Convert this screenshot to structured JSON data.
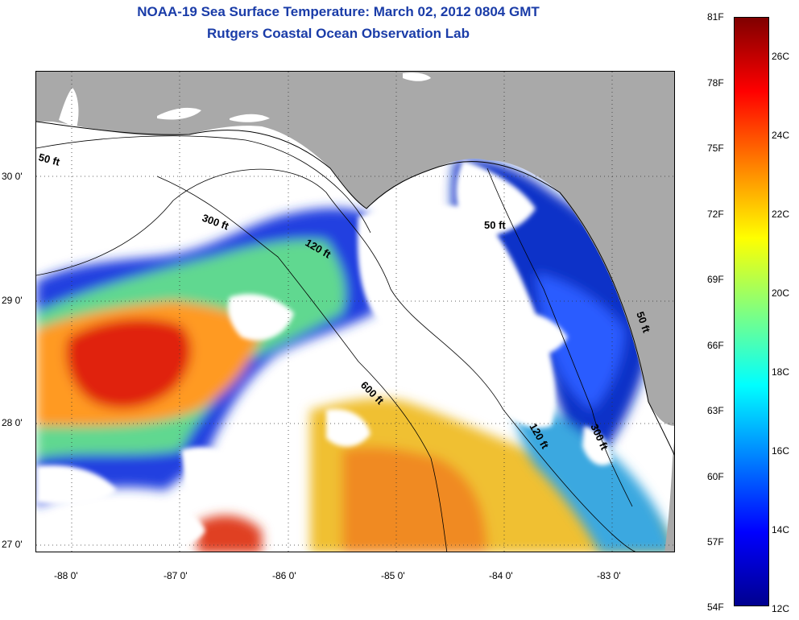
{
  "title": {
    "line1": "NOAA-19 Sea Surface Temperature:  March 02, 2012 0804 GMT",
    "line2": "Rutgers Coastal Ocean Observation Lab"
  },
  "axes": {
    "lat_labels": [
      "30 0'",
      "29 0'",
      "28 0'",
      "27 0'"
    ],
    "lon_labels": [
      "-88 0'",
      "-87 0'",
      "-86 0'",
      "-85 0'",
      "-84 0'",
      "-83 0'"
    ]
  },
  "contours": {
    "labels": [
      "50 ft",
      "300 ft",
      "120 ft",
      "50 ft",
      "600 ft",
      "120 ft",
      "300 ft",
      "50 ft"
    ]
  },
  "colorbar": {
    "fahrenheit_labels": [
      "81F",
      "78F",
      "75F",
      "72F",
      "69F",
      "66F",
      "63F",
      "60F",
      "57F",
      "54F"
    ],
    "celsius_labels": [
      "26C",
      "24C",
      "22C",
      "20C",
      "18C",
      "16C",
      "14C",
      "12C"
    ],
    "range_c": [
      12,
      27
    ],
    "colors": [
      "#00008f",
      "#0000ff",
      "#0080ff",
      "#00ffff",
      "#80ff80",
      "#ffff00",
      "#ff8000",
      "#ff0000",
      "#800000"
    ]
  },
  "colors": {
    "land": "#a9a9a9",
    "no_data": "#ffffff",
    "title": "#1a3ca8"
  }
}
